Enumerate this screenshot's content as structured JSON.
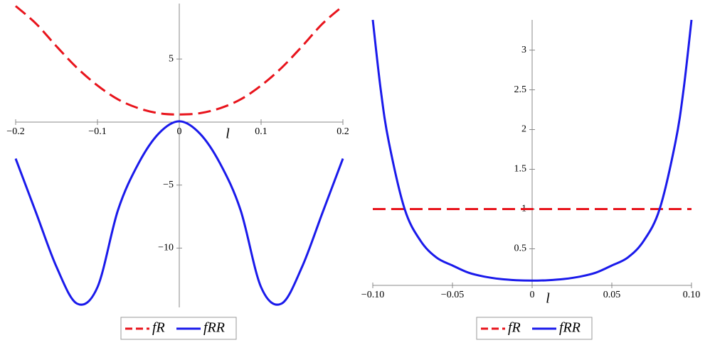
{
  "chart_data": [
    {
      "type": "line",
      "xlabel": "l",
      "x": [
        -0.2,
        -0.175,
        -0.15,
        -0.125,
        -0.1,
        -0.075,
        -0.05,
        -0.025,
        0,
        0.025,
        0.05,
        0.075,
        0.1,
        0.125,
        0.15,
        0.175,
        0.2
      ],
      "series": [
        {
          "name": "fR",
          "color": "#e8141c",
          "dash": true,
          "values": [
            9.2,
            7.8,
            6.0,
            4.3,
            2.9,
            1.8,
            1.1,
            0.7,
            0.6,
            0.7,
            1.1,
            1.8,
            2.9,
            4.3,
            6.0,
            7.8,
            9.2
          ]
        },
        {
          "name": "fRR",
          "color": "#1a1aeb",
          "dash": false,
          "values": [
            -2.9,
            -7.2,
            -11.5,
            -14.4,
            -13.1,
            -7.0,
            -3.3,
            -0.9,
            0.06,
            -0.9,
            -3.3,
            -7.0,
            -13.1,
            -14.4,
            -11.5,
            -7.2,
            -2.9
          ]
        }
      ],
      "xlim": [
        -0.2,
        0.2
      ],
      "ylim": [
        -14.7,
        9.4
      ],
      "xticks": [
        {
          "value": -0.2,
          "label": "−0.2"
        },
        {
          "value": -0.1,
          "label": "−0.1"
        },
        0,
        0.1,
        0.2
      ],
      "yticks": [
        5,
        {
          "value": -5,
          "label": "−5"
        },
        {
          "value": -10,
          "label": "−10"
        }
      ]
    },
    {
      "type": "line",
      "xlabel": "l",
      "x": [
        -0.1,
        -0.095,
        -0.09,
        -0.08,
        -0.07,
        -0.06,
        -0.05,
        -0.04,
        -0.03,
        -0.02,
        -0.01,
        0,
        0.01,
        0.02,
        0.03,
        0.04,
        0.05,
        0.06,
        0.07,
        0.08,
        0.09,
        0.095,
        0.1
      ],
      "series": [
        {
          "name": "fR",
          "color": "#e8141c",
          "dash": true,
          "values": [
            1,
            1,
            1,
            1,
            1,
            1,
            1,
            1,
            1,
            1,
            1,
            1,
            1,
            1,
            1,
            1,
            1,
            1,
            1,
            1,
            1,
            1,
            1
          ]
        },
        {
          "name": "fRR",
          "color": "#1a1aeb",
          "dash": false,
          "values": [
            3.38,
            2.5,
            1.85,
            1.0,
            0.6,
            0.39,
            0.29,
            0.2,
            0.15,
            0.12,
            0.105,
            0.1,
            0.105,
            0.12,
            0.15,
            0.2,
            0.29,
            0.39,
            0.6,
            1.0,
            1.85,
            2.5,
            3.38
          ]
        }
      ],
      "xlim": [
        -0.1,
        0.1
      ],
      "ylim": [
        0.04,
        3.38
      ],
      "xticks": [
        {
          "value": -0.1,
          "label": "−0.10"
        },
        {
          "value": -0.05,
          "label": "−0.05"
        },
        0,
        0.05,
        {
          "value": 0.1,
          "label": "0.10"
        }
      ],
      "yticks": [
        0.5,
        1,
        1.5,
        2,
        2.5,
        3
      ]
    }
  ]
}
